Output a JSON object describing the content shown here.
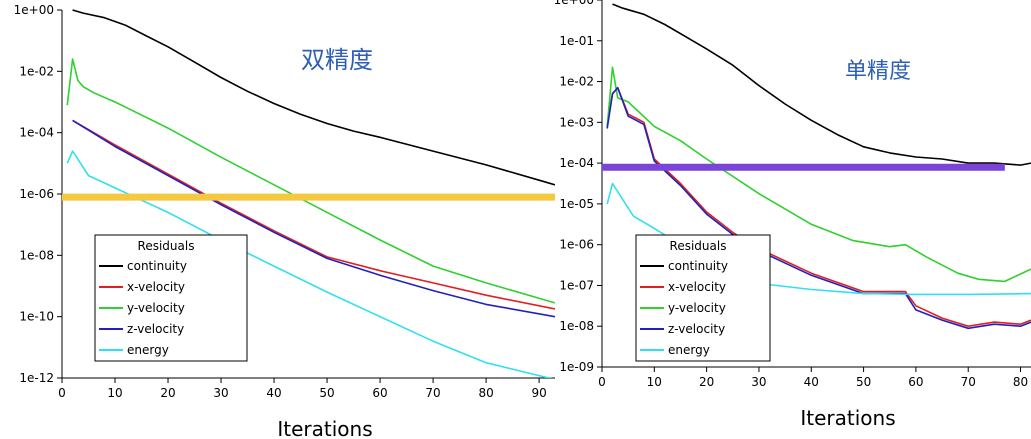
{
  "colors": {
    "continuity": "#000000",
    "x-velocity": "#e02020",
    "y-velocity": "#30d030",
    "z-velocity": "#2020c0",
    "energy": "#30e0f0",
    "highlight_left": "#f5c842",
    "highlight_right": "#7a44d8",
    "annotation_text": "#2e5fb5"
  },
  "chart_data": [
    {
      "type": "line",
      "title": "双精度",
      "xlabel": "Iterations",
      "ylabel": "",
      "log_scale_y": true,
      "xlim": [
        0,
        93
      ],
      "ylim_exp": [
        -12,
        0
      ],
      "x_ticks": [
        0,
        10,
        20,
        30,
        40,
        50,
        60,
        70,
        80,
        90
      ],
      "x_tick_labels": [
        "0",
        "10",
        "20",
        "30",
        "40",
        "50",
        "60",
        "70",
        "80",
        "90"
      ],
      "y_ticks_exp": [
        -12,
        -10,
        -8,
        -6,
        -4,
        -2,
        0
      ],
      "y_tick_labels": [
        "1e-12",
        "1e-10",
        "1e-08",
        "1e-06",
        "1e-04",
        "1e-02",
        "1e+00"
      ],
      "legend_title": "Residuals",
      "legend_position": "bottom-left",
      "highlight_line": {
        "y_exp": -6.1,
        "from_x": 0,
        "to_x": 93
      },
      "series": [
        {
          "name": "continuity",
          "x": [
            2,
            4,
            8,
            12,
            16,
            20,
            25,
            30,
            35,
            40,
            45,
            50,
            55,
            60,
            70,
            80,
            90,
            93
          ],
          "y_exp": [
            0,
            -0.1,
            -0.25,
            -0.5,
            -0.85,
            -1.2,
            -1.7,
            -2.2,
            -2.65,
            -3.05,
            -3.4,
            -3.7,
            -3.95,
            -4.15,
            -4.6,
            -5.05,
            -5.55,
            -5.7
          ]
        },
        {
          "name": "x-velocity",
          "x": [
            2,
            10,
            20,
            30,
            40,
            50,
            60,
            70,
            80,
            93
          ],
          "y_exp": [
            -3.6,
            -4.4,
            -5.35,
            -6.3,
            -7.2,
            -8.05,
            -8.5,
            -8.9,
            -9.3,
            -9.75
          ]
        },
        {
          "name": "y-velocity",
          "x": [
            1,
            2,
            3,
            4,
            6,
            10,
            20,
            30,
            40,
            50,
            60,
            70,
            80,
            93
          ],
          "y_exp": [
            -3.1,
            -1.6,
            -2.3,
            -2.5,
            -2.7,
            -3.0,
            -3.85,
            -4.8,
            -5.7,
            -6.6,
            -7.5,
            -8.35,
            -8.9,
            -9.55
          ]
        },
        {
          "name": "z-velocity",
          "x": [
            2,
            10,
            20,
            30,
            40,
            50,
            60,
            70,
            80,
            93
          ],
          "y_exp": [
            -3.6,
            -4.45,
            -5.4,
            -6.35,
            -7.25,
            -8.1,
            -8.65,
            -9.15,
            -9.6,
            -10.0
          ]
        },
        {
          "name": "energy",
          "x": [
            1,
            2,
            5,
            10,
            20,
            30,
            40,
            50,
            60,
            70,
            80,
            93
          ],
          "y_exp": [
            -5.0,
            -4.6,
            -5.4,
            -5.8,
            -6.6,
            -7.5,
            -8.35,
            -9.2,
            -10.0,
            -10.8,
            -11.5,
            -12.05
          ]
        }
      ]
    },
    {
      "type": "line",
      "title": "单精度",
      "xlabel": "Iterations",
      "ylabel": "",
      "log_scale_y": true,
      "xlim": [
        0,
        82
      ],
      "ylim_exp": [
        -9,
        0
      ],
      "x_ticks": [
        0,
        10,
        20,
        30,
        40,
        50,
        60,
        70,
        80
      ],
      "x_tick_labels": [
        "0",
        "10",
        "20",
        "30",
        "40",
        "50",
        "60",
        "70",
        "80"
      ],
      "y_ticks_exp": [
        -9,
        -8,
        -7,
        -6,
        -5,
        -4,
        -3,
        -2,
        -1,
        0
      ],
      "y_tick_labels": [
        "1e-09",
        "1e-08",
        "1e-07",
        "1e-06",
        "1e-05",
        "1e-04",
        "1e-03",
        "1e-02",
        "1e-01",
        "1e+00"
      ],
      "legend_title": "Residuals",
      "legend_position": "bottom-left",
      "highlight_line": {
        "y_exp": -4.1,
        "from_x": 0,
        "to_x": 77
      },
      "series": [
        {
          "name": "continuity",
          "x": [
            2,
            4,
            8,
            12,
            16,
            20,
            25,
            30,
            35,
            40,
            45,
            50,
            55,
            60,
            65,
            70,
            75,
            80,
            82
          ],
          "y_exp": [
            -0.1,
            -0.2,
            -0.35,
            -0.6,
            -0.9,
            -1.2,
            -1.6,
            -2.1,
            -2.55,
            -2.95,
            -3.3,
            -3.6,
            -3.75,
            -3.85,
            -3.9,
            -4.0,
            -4.0,
            -4.05,
            -4.0
          ]
        },
        {
          "name": "x-velocity",
          "x": [
            1,
            2,
            3,
            5,
            8,
            10,
            15,
            20,
            25,
            30,
            40,
            50,
            58,
            60,
            65,
            70,
            75,
            80,
            82
          ],
          "y_exp": [
            -3.1,
            -2.3,
            -2.15,
            -2.8,
            -3.0,
            -3.9,
            -4.5,
            -5.2,
            -5.7,
            -6.1,
            -6.7,
            -7.15,
            -7.15,
            -7.5,
            -7.8,
            -8.0,
            -7.9,
            -7.95,
            -7.85
          ]
        },
        {
          "name": "y-velocity",
          "x": [
            1,
            2,
            3,
            5,
            10,
            15,
            20,
            30,
            40,
            48,
            55,
            58,
            62,
            68,
            72,
            77,
            82
          ],
          "y_exp": [
            -3.1,
            -1.65,
            -2.4,
            -2.5,
            -3.1,
            -3.45,
            -3.9,
            -4.75,
            -5.5,
            -5.9,
            -6.05,
            -6.0,
            -6.3,
            -6.7,
            -6.85,
            -6.9,
            -6.6
          ]
        },
        {
          "name": "z-velocity",
          "x": [
            1,
            2,
            3,
            5,
            8,
            10,
            15,
            20,
            25,
            30,
            40,
            50,
            58,
            60,
            65,
            70,
            75,
            80,
            82
          ],
          "y_exp": [
            -3.15,
            -2.3,
            -2.15,
            -2.85,
            -3.05,
            -3.95,
            -4.55,
            -5.25,
            -5.75,
            -6.15,
            -6.75,
            -7.2,
            -7.2,
            -7.6,
            -7.85,
            -8.05,
            -7.95,
            -8.0,
            -7.9
          ]
        },
        {
          "name": "energy",
          "x": [
            1,
            2,
            4,
            6,
            10,
            15,
            20,
            25,
            30,
            40,
            50,
            60,
            70,
            82
          ],
          "y_exp": [
            -5.0,
            -4.5,
            -4.9,
            -5.3,
            -5.6,
            -6.0,
            -6.45,
            -6.75,
            -6.95,
            -7.1,
            -7.2,
            -7.22,
            -7.22,
            -7.2
          ]
        }
      ]
    }
  ]
}
